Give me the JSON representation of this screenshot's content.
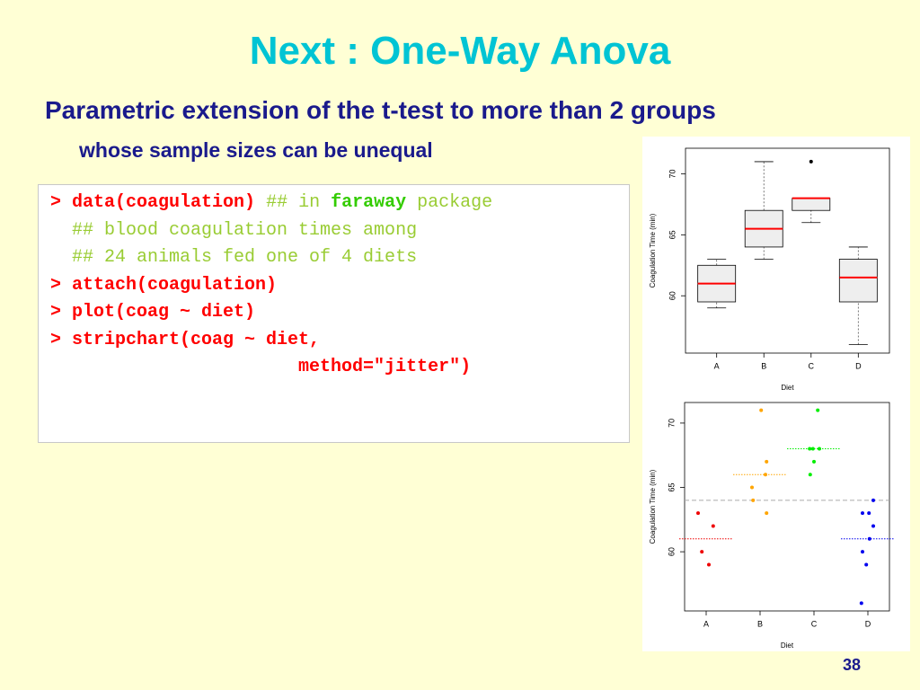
{
  "title": "Next :  One-Way Anova",
  "subtitle": "Parametric extension of the t-test to more than 2 groups",
  "subtitle2": "whose sample sizes can be unequal",
  "code": {
    "lines": [
      [
        {
          "text": "> ",
          "color": "#ff0000",
          "bold": true
        },
        {
          "text": "data(coagulation)",
          "color": "#ff0000",
          "bold": true
        },
        {
          "text": " ## in ",
          "color": "#99cc33"
        },
        {
          "text": "faraway",
          "color": "#33cc00",
          "bold": true
        },
        {
          "text": " package",
          "color": "#99cc33"
        }
      ],
      [
        {
          "text": "  ## blood coagulation times among",
          "color": "#99cc33"
        }
      ],
      [
        {
          "text": "  ## 24 animals fed one of 4 diets",
          "color": "#99cc33"
        }
      ],
      [
        {
          "text": "> attach(coagulation)",
          "color": "#ff0000",
          "bold": true
        }
      ],
      [
        {
          "text": "> plot(coag ~ diet)",
          "color": "#ff0000",
          "bold": true
        }
      ],
      [
        {
          "text": "> stripchart(coag ~ diet,",
          "color": "#ff0000",
          "bold": true
        }
      ],
      [
        {
          "text": "                       method=\"jitter\")",
          "color": "#ff0000",
          "bold": true
        }
      ]
    ]
  },
  "page_number": "38",
  "chart_data": [
    {
      "type": "box",
      "categories": [
        "A",
        "B",
        "C",
        "D"
      ],
      "x_label": "Diet",
      "y_label": "Coagulation Time (min)",
      "ylim": [
        55.3,
        72.1
      ],
      "yticks": [
        60,
        65,
        70
      ],
      "box_color": "#eeeeee",
      "median_color": "#ff0000",
      "boxes": [
        {
          "min": 59,
          "q1": 59.5,
          "median": 61,
          "q3": 62.5,
          "max": 63,
          "outliers": []
        },
        {
          "min": 63,
          "q1": 64,
          "median": 65.5,
          "q3": 67,
          "max": 71,
          "outliers": []
        },
        {
          "min": 66,
          "q1": 67,
          "median": 68,
          "q3": 68,
          "max": 68,
          "outliers": [
            71
          ]
        },
        {
          "min": 56,
          "q1": 59.5,
          "median": 61.5,
          "q3": 63,
          "max": 64,
          "outliers": []
        }
      ]
    },
    {
      "type": "scatter",
      "x_label": "Diet",
      "y_label": "Coagulation Time (min)",
      "xlim": [
        0.6,
        4.4
      ],
      "xticks": [
        {
          "value": 1,
          "label": "A"
        },
        {
          "value": 2,
          "label": "B"
        },
        {
          "value": 3,
          "label": "C"
        },
        {
          "value": 4,
          "label": "D"
        }
      ],
      "ylim": [
        55.4,
        71.6
      ],
      "yticks": [
        60,
        65,
        70
      ],
      "reference_line": 64,
      "reference_color": "#aaaaaa",
      "series": [
        {
          "color": "#ee0000",
          "mean": 61,
          "x": [
            0.85,
            1.13,
            0.92,
            1.05
          ],
          "values": [
            63,
            62,
            60,
            59
          ]
        },
        {
          "color": "#ffa500",
          "mean": 66,
          "x": [
            2.02,
            2.12,
            2.1,
            1.85,
            1.87,
            2.12
          ],
          "values": [
            71,
            67,
            66,
            65,
            64,
            63
          ]
        },
        {
          "color": "#00ee00",
          "mean": 68,
          "x": [
            3.07,
            2.92,
            2.98,
            3.1,
            3.0,
            2.93
          ],
          "values": [
            71,
            68,
            68,
            68,
            67,
            66
          ]
        },
        {
          "color": "#0000ee",
          "mean": 61,
          "x": [
            4.1,
            3.9,
            4.02,
            4.1,
            4.03,
            3.9,
            3.97,
            3.88
          ],
          "values": [
            64,
            63,
            63,
            62,
            61,
            60,
            59,
            56
          ]
        }
      ]
    }
  ]
}
